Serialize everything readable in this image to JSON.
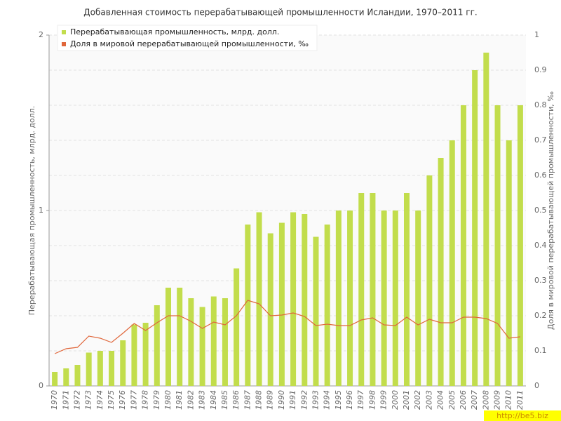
{
  "chart_data": {
    "type": "bar-line",
    "title": "Добавленная стоимость перерабатывающей промышленности Исландии, 1970–2011 гг.",
    "y_label": "Перерабатывающая промышленность, млрд. долл.",
    "y2_label": "Доля в мировой перерабатывающей промышленности, ‰",
    "watermark": "http://be5.biz",
    "categories": [
      "1970",
      "1971",
      "1972",
      "1973",
      "1974",
      "1975",
      "1976",
      "1977",
      "1978",
      "1979",
      "1980",
      "1981",
      "1982",
      "1983",
      "1984",
      "1985",
      "1986",
      "1987",
      "1988",
      "1989",
      "1990",
      "1991",
      "1992",
      "1993",
      "1994",
      "1995",
      "1996",
      "1997",
      "1998",
      "1999",
      "2000",
      "2001",
      "2002",
      "2003",
      "2004",
      "2005",
      "2006",
      "2007",
      "2008",
      "2009",
      "2010",
      "2011"
    ],
    "series": [
      {
        "name": "Перерабатывающая промышленность, млрд. долл.",
        "color": "#c2dd4c",
        "kind": "bar",
        "values": [
          0.08,
          0.1,
          0.12,
          0.19,
          0.2,
          0.2,
          0.26,
          0.35,
          0.36,
          0.46,
          0.56,
          0.56,
          0.5,
          0.45,
          0.51,
          0.5,
          0.67,
          0.92,
          0.99,
          0.87,
          0.93,
          0.99,
          0.98,
          0.85,
          0.92,
          1.0,
          1.0,
          1.1,
          1.1,
          1.0,
          1.0,
          1.1,
          1.0,
          1.2,
          1.3,
          1.4,
          1.6,
          1.8,
          1.9,
          1.6,
          1.4,
          1.6
        ]
      },
      {
        "name": "Доля в мировой перерабатывающей промышленности, ‰",
        "color": "#e0663a",
        "kind": "line",
        "axis": "y2",
        "values": [
          0.092,
          0.106,
          0.11,
          0.142,
          0.136,
          0.124,
          0.15,
          0.178,
          0.158,
          0.18,
          0.2,
          0.2,
          0.184,
          0.164,
          0.182,
          0.174,
          0.2,
          0.244,
          0.234,
          0.2,
          0.202,
          0.208,
          0.198,
          0.172,
          0.176,
          0.172,
          0.172,
          0.188,
          0.194,
          0.174,
          0.172,
          0.196,
          0.174,
          0.19,
          0.18,
          0.18,
          0.196,
          0.196,
          0.192,
          0.178,
          0.136,
          0.14
        ]
      }
    ],
    "ylim": [
      0,
      2
    ],
    "yticks": [
      0,
      1,
      2
    ],
    "y2lim": [
      0,
      1
    ],
    "y2ticks": [
      0,
      0.1,
      0.2,
      0.3,
      0.4,
      0.5,
      0.6,
      0.7,
      0.8,
      0.9,
      1
    ],
    "grid": true,
    "legend": "top-left"
  }
}
